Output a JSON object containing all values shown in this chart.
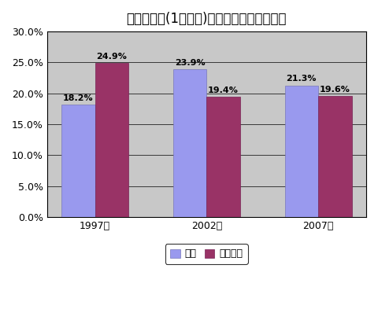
{
  "title": "長期失業者(1年以上)が失業者に占める割合",
  "categories": [
    "1997年",
    "2002年",
    "2007年"
  ],
  "japan_values": [
    18.2,
    23.9,
    21.3
  ],
  "oecd_values": [
    24.9,
    19.4,
    19.6
  ],
  "japan_color": "#9999EE",
  "oecd_color": "#993366",
  "ylim": [
    0,
    30
  ],
  "yticks": [
    0,
    5,
    10,
    15,
    20,
    25,
    30
  ],
  "legend_japan": "日本",
  "legend_oecd": "ＯＥＣＤ",
  "bar_width": 0.3,
  "figure_bg_color": "#FFFFFF",
  "plot_bg_color": "#C8C8C8",
  "title_fontsize": 12,
  "label_fontsize": 8,
  "tick_fontsize": 9
}
